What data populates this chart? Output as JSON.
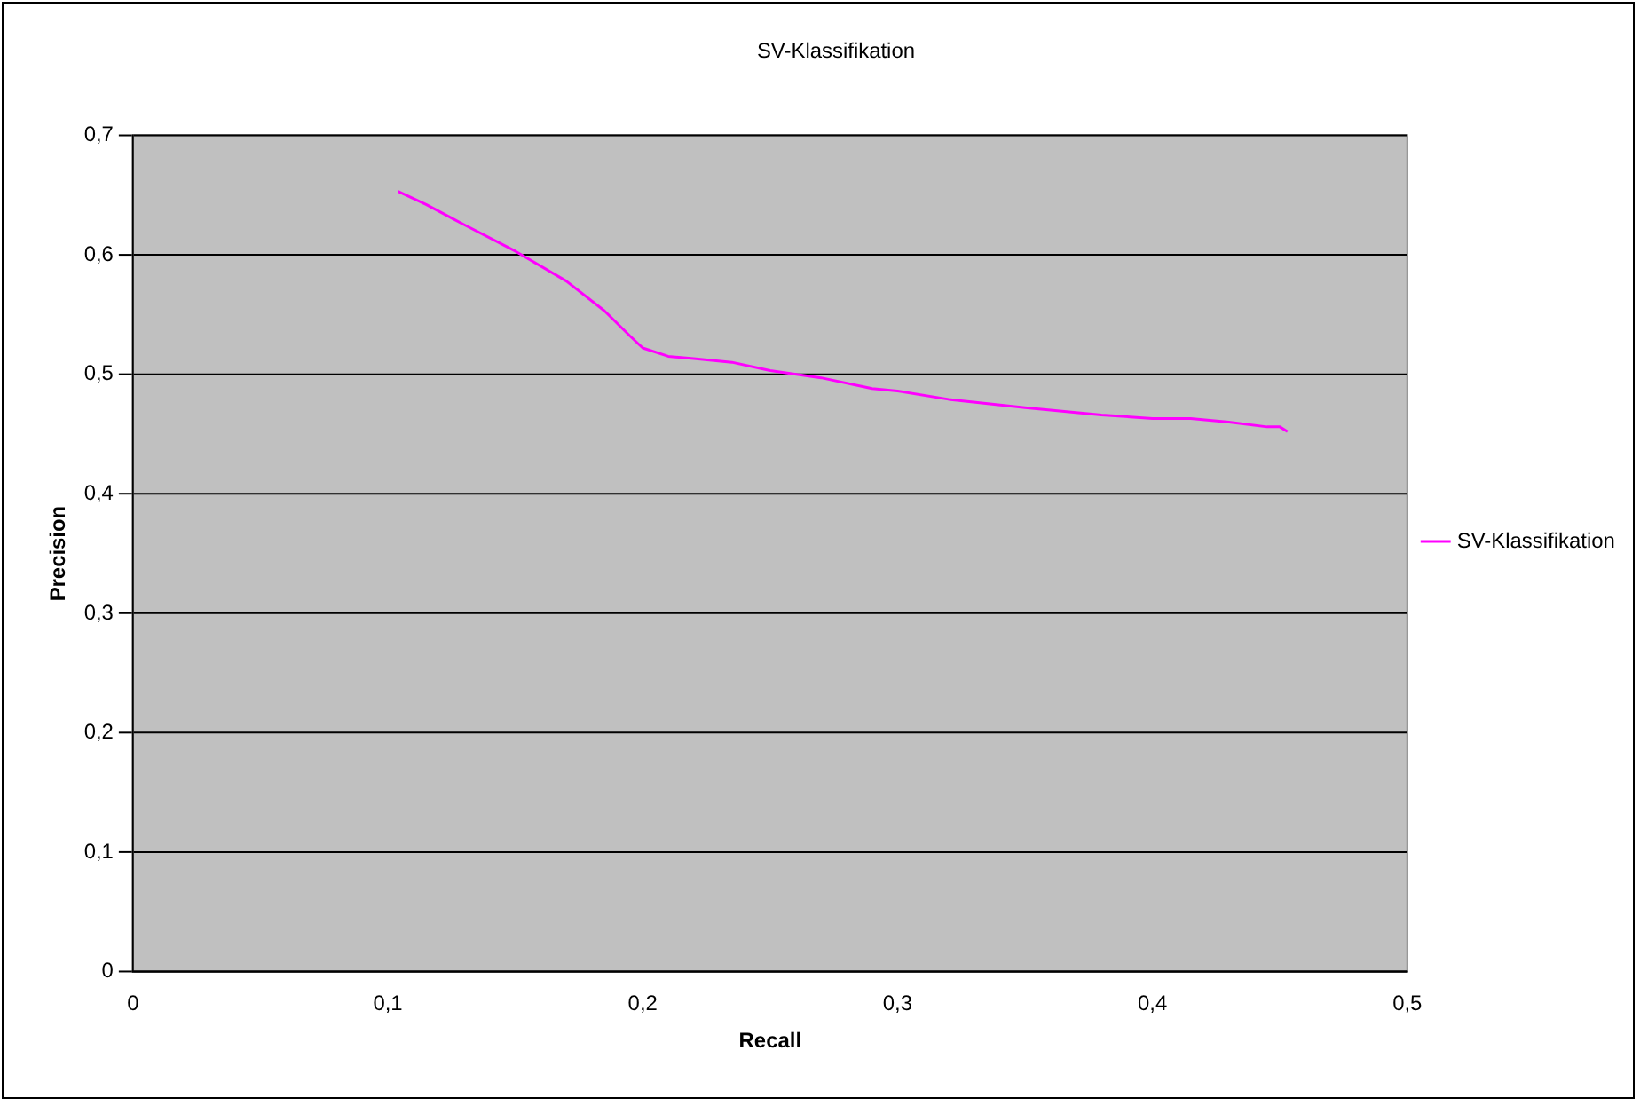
{
  "chart_data": {
    "type": "line",
    "title": "SV-Klassifikation",
    "xlabel": "Recall",
    "ylabel": "Precision",
    "series": [
      {
        "name": "SV-Klassifikation",
        "color": "#ff00ff",
        "x": [
          0.104,
          0.115,
          0.13,
          0.15,
          0.17,
          0.185,
          0.195,
          0.2,
          0.21,
          0.22,
          0.235,
          0.25,
          0.27,
          0.29,
          0.3,
          0.32,
          0.35,
          0.38,
          0.4,
          0.415,
          0.43,
          0.445,
          0.45,
          0.453
        ],
        "values": [
          0.653,
          0.642,
          0.625,
          0.603,
          0.578,
          0.553,
          0.532,
          0.522,
          0.515,
          0.513,
          0.51,
          0.503,
          0.497,
          0.488,
          0.486,
          0.479,
          0.472,
          0.466,
          0.463,
          0.463,
          0.46,
          0.456,
          0.456,
          0.452
        ]
      }
    ],
    "xlim": [
      0,
      0.5
    ],
    "xticks": [
      {
        "value": 0,
        "label": "0"
      },
      {
        "value": 0.1,
        "label": "0,1"
      },
      {
        "value": 0.2,
        "label": "0,2"
      },
      {
        "value": 0.3,
        "label": "0,3"
      },
      {
        "value": 0.4,
        "label": "0,4"
      },
      {
        "value": 0.5,
        "label": "0,5"
      }
    ],
    "ylim": [
      0,
      0.7
    ],
    "yticks": [
      {
        "value": 0,
        "label": "0"
      },
      {
        "value": 0.1,
        "label": "0,1"
      },
      {
        "value": 0.2,
        "label": "0,2"
      },
      {
        "value": 0.3,
        "label": "0,3"
      },
      {
        "value": 0.4,
        "label": "0,4"
      },
      {
        "value": 0.5,
        "label": "0,5"
      },
      {
        "value": 0.6,
        "label": "0,6"
      },
      {
        "value": 0.7,
        "label": "0,7"
      }
    ],
    "grid": "y",
    "legend": "right",
    "marker": "none",
    "line_style": "solid"
  }
}
